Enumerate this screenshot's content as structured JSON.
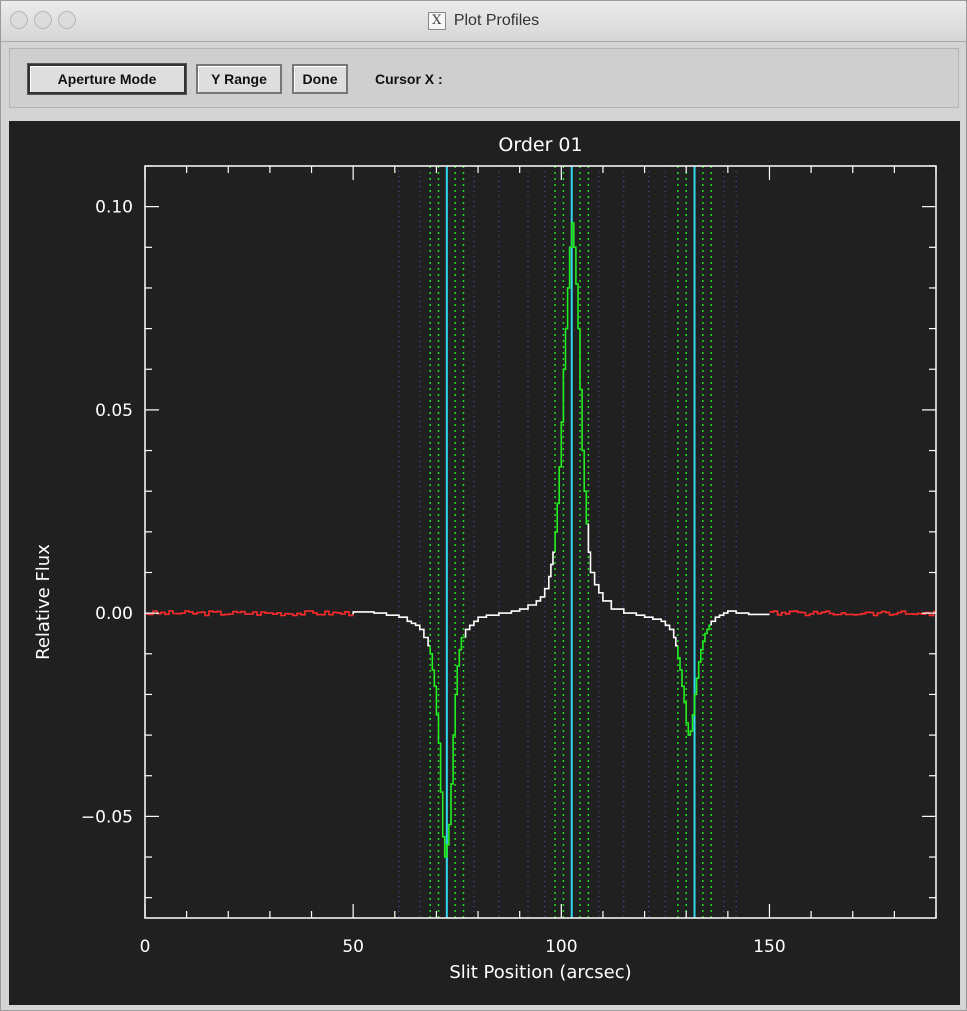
{
  "window": {
    "title": "Plot Profiles",
    "title_icon": "x11-icon"
  },
  "toolbar": {
    "aperture_mode_label": "Aperture Mode",
    "y_range_label": "Y Range",
    "done_label": "Done",
    "cursor_x_label": "Cursor X :"
  },
  "colors": {
    "background": "#202020",
    "axes": "#ffffff",
    "profile_white": "#ffffff",
    "profile_red": "#ff2a2a",
    "profile_green": "#22ee22",
    "aperture_line": "#33d8ee",
    "aperture_bounds": "#22dd22",
    "background_bounds": "#4a4aaa"
  },
  "chart_data": {
    "type": "line",
    "title": "Order 01",
    "xlabel": "Slit Position (arcsec)",
    "ylabel": "Relative Flux",
    "xlim": [
      0,
      190
    ],
    "ylim": [
      -0.075,
      0.11
    ],
    "xticks": [
      0,
      50,
      100,
      150
    ],
    "xtick_labels": [
      "0",
      "50",
      "100",
      "150"
    ],
    "yticks": [
      -0.05,
      0,
      0.05,
      0.1
    ],
    "ytick_labels": [
      "−0.05",
      "0.00",
      "0.05",
      "0.10"
    ],
    "aperture_centers": [
      72.5,
      102.5,
      132.0
    ],
    "aperture_bounds": [
      68.5,
      70.5,
      74.5,
      76.5,
      98.5,
      100.5,
      104.5,
      106.5,
      128.0,
      130.0,
      134.0,
      136.0
    ],
    "background_bounds": [
      61,
      66,
      79,
      85,
      92,
      96,
      109,
      115,
      121,
      125,
      139,
      142
    ],
    "series": [
      {
        "color": "#ffffff",
        "x": [
          0,
          10,
          20,
          30,
          40,
          50,
          55,
          58,
          61,
          63,
          64,
          65,
          66,
          67,
          68,
          68.5,
          69,
          69.5,
          70,
          70.5,
          71,
          71.5,
          72,
          72.5,
          73,
          73.5,
          74,
          74.5,
          75,
          75.5,
          76,
          77,
          78,
          79,
          80,
          82,
          85,
          88,
          90,
          92,
          94,
          95,
          96,
          97,
          97.5,
          98,
          98.5,
          99,
          99.5,
          100,
          100.5,
          101,
          101.5,
          102,
          102.5,
          103,
          103.5,
          104,
          104.5,
          105,
          105.5,
          106,
          106.5,
          107,
          108,
          109,
          110,
          112,
          115,
          118,
          120,
          122,
          124,
          125,
          126,
          127,
          127.5,
          128,
          128.5,
          129,
          129.5,
          130,
          130.5,
          131,
          131.5,
          132,
          132.5,
          133,
          133.5,
          134,
          134.5,
          135,
          135.5,
          136,
          137,
          138,
          139,
          140,
          142,
          145,
          150,
          160,
          170,
          180,
          190
        ],
        "y": [
          0.0,
          0.0003,
          -0.0002,
          0.0002,
          -0.0003,
          0.0003,
          0.0,
          -0.0005,
          -0.001,
          -0.002,
          -0.0025,
          -0.003,
          -0.004,
          -0.006,
          -0.008,
          -0.01,
          -0.014,
          -0.018,
          -0.025,
          -0.032,
          -0.044,
          -0.055,
          -0.06,
          -0.057,
          -0.052,
          -0.042,
          -0.03,
          -0.02,
          -0.013,
          -0.009,
          -0.006,
          -0.004,
          -0.003,
          -0.002,
          -0.001,
          -0.0005,
          0.0,
          0.0005,
          0.001,
          0.002,
          0.003,
          0.004,
          0.006,
          0.009,
          0.012,
          0.015,
          0.02,
          0.027,
          0.036,
          0.047,
          0.06,
          0.07,
          0.08,
          0.09,
          0.096,
          0.09,
          0.081,
          0.07,
          0.055,
          0.04,
          0.03,
          0.022,
          0.015,
          0.01,
          0.007,
          0.005,
          0.003,
          0.001,
          0.0,
          -0.0005,
          -0.001,
          -0.0015,
          -0.002,
          -0.003,
          -0.004,
          -0.006,
          -0.008,
          -0.011,
          -0.014,
          -0.018,
          -0.022,
          -0.027,
          -0.03,
          -0.029,
          -0.025,
          -0.02,
          -0.016,
          -0.012,
          -0.009,
          -0.007,
          -0.005,
          -0.004,
          -0.003,
          -0.002,
          -0.001,
          -0.0005,
          0.0,
          0.0005,
          0.0,
          -0.0003,
          0.0003,
          -0.0002,
          0.0002,
          -0.0002,
          0.0
        ]
      }
    ]
  }
}
